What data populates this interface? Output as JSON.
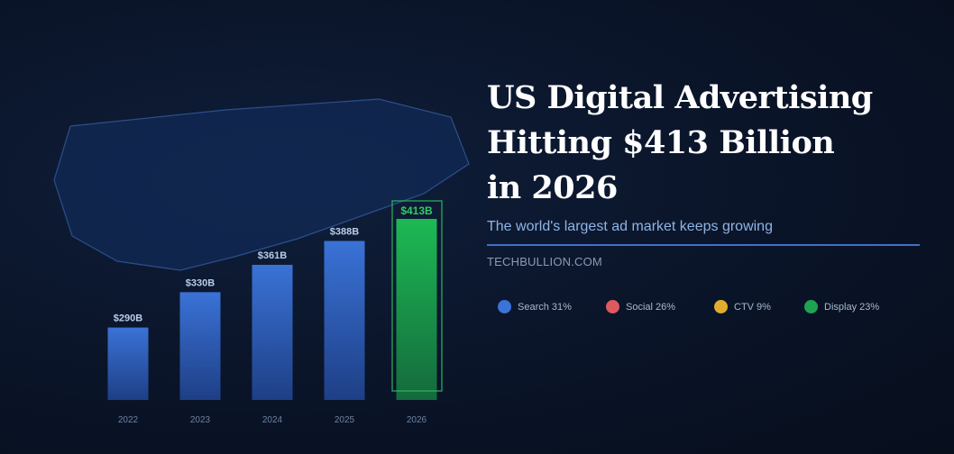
{
  "header": {
    "title_lines": [
      "US Digital Advertising",
      "Hitting $413 Billion",
      "in 2026"
    ],
    "subtitle": "The world's largest ad market keeps growing",
    "source": "TECHBULLION.COM"
  },
  "legend": [
    {
      "label": "Search 31%",
      "color": "#3b73d9"
    },
    {
      "label": "Social 26%",
      "color": "#dd5a5f"
    },
    {
      "label": "CTV 9%",
      "color": "#e0ad2e"
    },
    {
      "label": "Display 23%",
      "color": "#1fa352"
    }
  ],
  "chart_data": {
    "type": "bar",
    "categories": [
      "2022",
      "2023",
      "2024",
      "2025",
      "2026"
    ],
    "values": [
      290,
      330,
      361,
      388,
      413
    ],
    "data_labels": [
      "$290B",
      "$330B",
      "$361B",
      "$388B",
      "$413B"
    ],
    "unit": "$B",
    "highlight": "2026",
    "colors": {
      "bar": "#3a72d6",
      "highlight": "#1db954",
      "label": "#b8cdea",
      "highlight_label": "#2ecc63"
    },
    "grid": false
  }
}
